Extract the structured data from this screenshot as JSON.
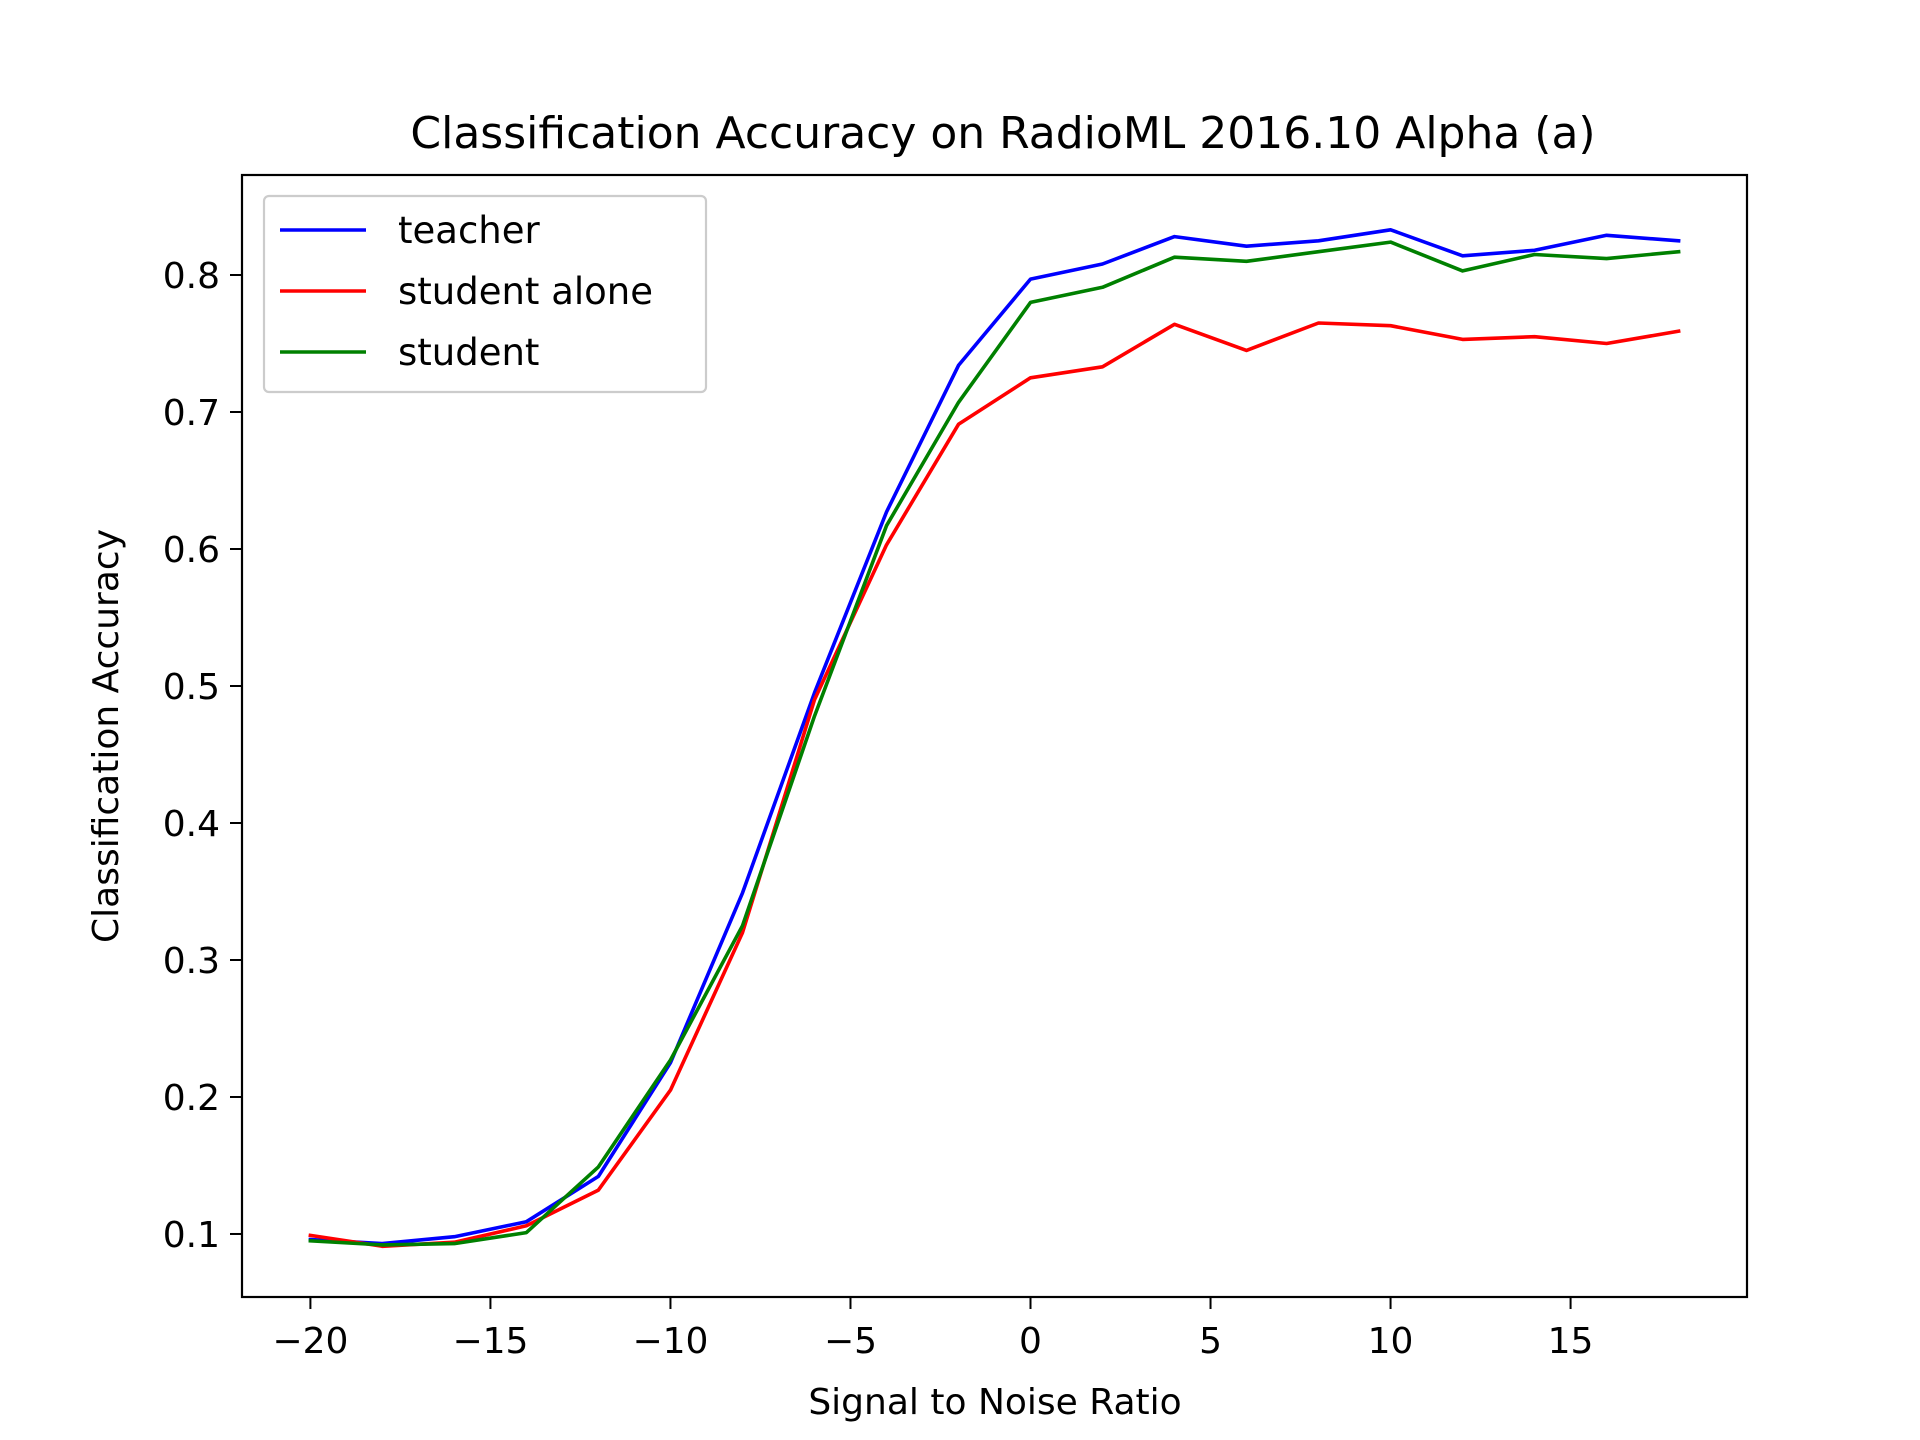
{
  "chart_data": {
    "type": "line",
    "title": "Classification Accuracy on RadioML 2016.10 Alpha (a)",
    "xlabel": "Signal to Noise Ratio",
    "ylabel": "Classification Accuracy",
    "xlim": [
      -21.9,
      19.9
    ],
    "ylim": [
      0.054,
      0.873
    ],
    "xticks": [
      -20,
      -15,
      -10,
      -5,
      0,
      5,
      10,
      15
    ],
    "xtick_labels": [
      "−20",
      "−15",
      "−10",
      "−5",
      "0",
      "5",
      "10",
      "15"
    ],
    "yticks": [
      0.1,
      0.2,
      0.3,
      0.4,
      0.5,
      0.6,
      0.7,
      0.8
    ],
    "ytick_labels": [
      "0.1",
      "0.2",
      "0.3",
      "0.4",
      "0.5",
      "0.6",
      "0.7",
      "0.8"
    ],
    "grid": false,
    "legend_position": "top-left",
    "x": [
      -20,
      -18,
      -16,
      -14,
      -12,
      -10,
      -8,
      -6,
      -4,
      -2,
      0,
      2,
      4,
      6,
      8,
      10,
      12,
      14,
      16,
      18
    ],
    "series": [
      {
        "name": "teacher",
        "color": "#0000ff",
        "values": [
          0.096,
          0.093,
          0.098,
          0.109,
          0.142,
          0.225,
          0.349,
          0.495,
          0.627,
          0.734,
          0.797,
          0.808,
          0.828,
          0.821,
          0.825,
          0.833,
          0.814,
          0.818,
          0.829,
          0.825
        ]
      },
      {
        "name": "student alone",
        "color": "#ff0000",
        "values": [
          0.099,
          0.091,
          0.094,
          0.106,
          0.132,
          0.205,
          0.32,
          0.49,
          0.603,
          0.691,
          0.725,
          0.733,
          0.764,
          0.745,
          0.765,
          0.763,
          0.753,
          0.755,
          0.75,
          0.759
        ]
      },
      {
        "name": "student",
        "color": "#008000",
        "values": [
          0.095,
          0.092,
          0.093,
          0.101,
          0.149,
          0.227,
          0.325,
          0.478,
          0.617,
          0.707,
          0.78,
          0.791,
          0.813,
          0.81,
          0.817,
          0.824,
          0.803,
          0.815,
          0.812,
          0.817
        ]
      }
    ]
  }
}
